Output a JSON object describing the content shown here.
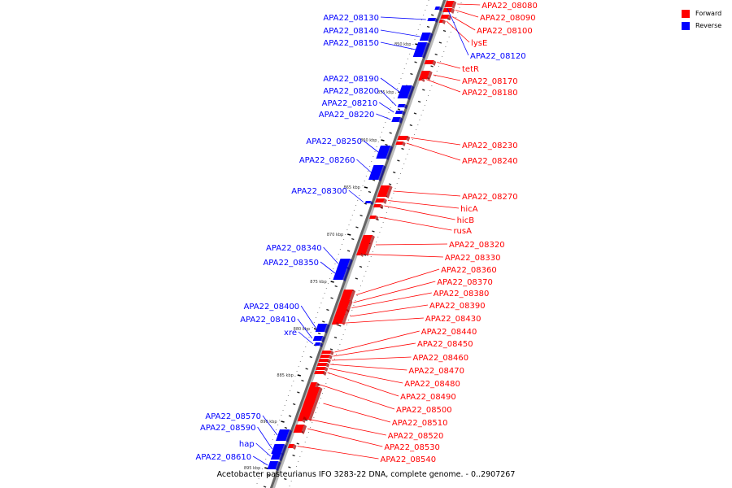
{
  "caption": "Acetobacter pasteurianus IFO 3283-22 DNA, complete genome. - 0..2907267",
  "legend": {
    "forward_label": "Forward",
    "reverse_label": "Reverse",
    "forward_color": "#ff0000",
    "reverse_color": "#0000ff"
  },
  "ticks": [
    "850 kbp",
    "855 kbp",
    "860 kbp",
    "865 kbp",
    "870 kbp",
    "875 kbp",
    "880 kbp",
    "885 kbp",
    "890 kbp",
    "895 kbp"
  ],
  "forward_labels": [
    "APA22_08080",
    "APA22_08090",
    "APA22_08100",
    "lysE",
    "tetR",
    "APA22_08170",
    "APA22_08180",
    "APA22_08230",
    "APA22_08240",
    "APA22_08270",
    "hicA",
    "hicB",
    "rusA",
    "APA22_08320",
    "APA22_08330",
    "APA22_08360",
    "APA22_08370",
    "APA22_08380",
    "APA22_08390",
    "APA22_08430",
    "APA22_08440",
    "APA22_08450",
    "APA22_08460",
    "APA22_08470",
    "APA22_08480",
    "APA22_08490",
    "APA22_08500",
    "APA22_08510",
    "APA22_08520",
    "APA22_08530",
    "APA22_08540"
  ],
  "reverse_labels": [
    "APA22_08130",
    "APA22_08140",
    "APA22_08150",
    "APA22_08120",
    "APA22_08190",
    "APA22_08200",
    "APA22_08210",
    "APA22_08220",
    "APA22_08250",
    "APA22_08260",
    "APA22_08300",
    "APA22_08340",
    "APA22_08350",
    "APA22_08400",
    "APA22_08410",
    "xre",
    "APA22_08570",
    "APA22_08590",
    "hap",
    "APA22_08610"
  ]
}
